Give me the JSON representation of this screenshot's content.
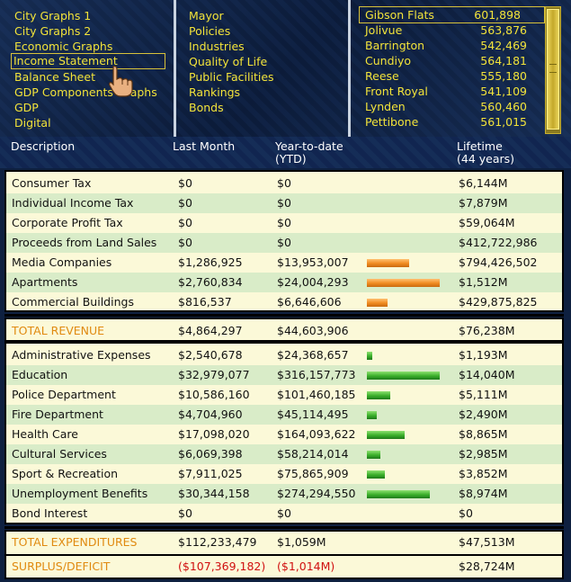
{
  "menu": {
    "graphs": [
      "City Graphs 1",
      "City Graphs 2",
      "Economic Graphs",
      "Income Statement",
      "Balance Sheet",
      "GDP Components Graphs",
      "GDP",
      "Digital"
    ],
    "selected_graph": 3,
    "topics": [
      "Mayor",
      "Policies",
      "Industries",
      "Quality of Life",
      "Public Facilities",
      "Rankings",
      "Bonds"
    ]
  },
  "cities": [
    {
      "name": "Gibson Flats",
      "population": "601,898"
    },
    {
      "name": "Jolivue",
      "population": "563,876"
    },
    {
      "name": "Barrington",
      "population": "542,469"
    },
    {
      "name": "Cundiyo",
      "population": "564,181"
    },
    {
      "name": "Reese",
      "population": "555,180"
    },
    {
      "name": "Front Royal",
      "population": "541,109"
    },
    {
      "name": "Lynden",
      "population": "560,460"
    },
    {
      "name": "Pettibone",
      "population": "561,015"
    }
  ],
  "selected_city": 0,
  "headers": {
    "description": "Description",
    "last_month": "Last Month",
    "ytd_line1": "Year-to-date",
    "ytd_line2": "(YTD)",
    "lifetime_line1": "Lifetime",
    "lifetime_line2": "(44 years)"
  },
  "revenue_rows": [
    {
      "desc": "Consumer Tax",
      "month": "$0",
      "ytd": "$0",
      "life": "$6,144M",
      "bar": 0
    },
    {
      "desc": "Individual Income Tax",
      "month": "$0",
      "ytd": "$0",
      "life": "$7,879M",
      "bar": 0
    },
    {
      "desc": "Corporate Profit Tax",
      "month": "$0",
      "ytd": "$0",
      "life": "$59,064M",
      "bar": 0
    },
    {
      "desc": "Proceeds from Land Sales",
      "month": "$0",
      "ytd": "$0",
      "life": "$412,722,986",
      "bar": 0
    },
    {
      "desc": "Media Companies",
      "month": "$1,286,925",
      "ytd": "$13,953,007",
      "life": "$794,426,502",
      "bar": 0.58
    },
    {
      "desc": "Apartments",
      "month": "$2,760,834",
      "ytd": "$24,004,293",
      "life": "$1,512M",
      "bar": 1.0
    },
    {
      "desc": "Commercial Buildings",
      "month": "$816,537",
      "ytd": "$6,646,606",
      "life": "$429,875,825",
      "bar": 0.28
    }
  ],
  "total_revenue": {
    "desc": "TOTAL REVENUE",
    "month": "$4,864,297",
    "ytd": "$44,603,906",
    "life": "$76,238M"
  },
  "expense_rows": [
    {
      "desc": "Administrative Expenses",
      "month": "$2,540,678",
      "ytd": "$24,368,657",
      "life": "$1,193M",
      "bar": 0.08
    },
    {
      "desc": "Education",
      "month": "$32,979,077",
      "ytd": "$316,157,773",
      "life": "$14,040M",
      "bar": 1.0
    },
    {
      "desc": "Police Department",
      "month": "$10,586,160",
      "ytd": "$101,460,185",
      "life": "$5,111M",
      "bar": 0.32
    },
    {
      "desc": "Fire Department",
      "month": "$4,704,960",
      "ytd": "$45,114,495",
      "life": "$2,490M",
      "bar": 0.14
    },
    {
      "desc": "Health Care",
      "month": "$17,098,020",
      "ytd": "$164,093,622",
      "life": "$8,865M",
      "bar": 0.52
    },
    {
      "desc": "Cultural Services",
      "month": "$6,069,398",
      "ytd": "$58,214,014",
      "life": "$2,985M",
      "bar": 0.19
    },
    {
      "desc": "Sport & Recreation",
      "month": "$7,911,025",
      "ytd": "$75,865,909",
      "life": "$3,852M",
      "bar": 0.25
    },
    {
      "desc": "Unemployment Benefits",
      "month": "$30,344,158",
      "ytd": "$274,294,550",
      "life": "$8,974M",
      "bar": 0.87
    },
    {
      "desc": "Bond Interest",
      "month": "$0",
      "ytd": "$0",
      "life": "$0",
      "bar": 0
    }
  ],
  "total_expenditures": {
    "desc": "TOTAL EXPENDITURES",
    "month": "$112,233,479",
    "ytd": "$1,059M",
    "life": "$47,513M"
  },
  "surplus": {
    "desc": "SURPLUS/DEFICIT",
    "month": "($107,369,182)",
    "ytd": "($1,014M)",
    "life": "$28,724M"
  },
  "colors": {
    "menu_text": "#f2e33a",
    "revenue_bar": "#f08a20",
    "expense_bar": "#3aae2a",
    "total_label": "#e08a10",
    "negative": "#d01010",
    "alt_row": "#d9ecc8",
    "panel_bg": "#fbf9d8"
  },
  "icons": {
    "pointer": "pointing-hand-icon"
  }
}
